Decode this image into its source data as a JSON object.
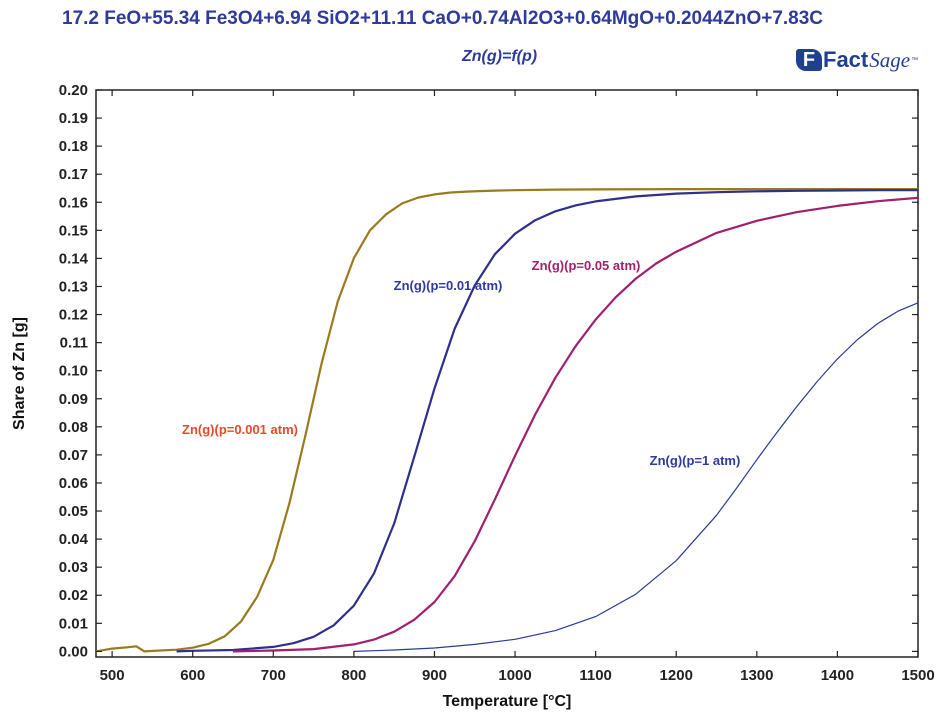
{
  "header": {
    "title": "17.2 FeO+55.34 Fe3O4+6.94 SiO2+11.11 CaO+0.74Al2O3+0.64MgO+0.2044ZnO+7.83C",
    "subtitle": "Zn(g)=f(p)",
    "logo": {
      "part1": "Fact",
      "part2": "Sage",
      "tm": "™",
      "icon": "factsage-logo-icon"
    }
  },
  "chart_data": {
    "type": "line",
    "xlabel": "Temperature [°C]",
    "ylabel": "Share of Zn [g]",
    "xlim": [
      480,
      1500
    ],
    "ylim": [
      -0.002,
      0.2
    ],
    "xticks": [
      500,
      600,
      700,
      800,
      900,
      1000,
      1100,
      1200,
      1300,
      1400,
      1500
    ],
    "yticks": [
      0.0,
      0.01,
      0.02,
      0.03,
      0.04,
      0.05,
      0.06,
      0.07,
      0.08,
      0.09,
      0.1,
      0.11,
      0.12,
      0.13,
      0.14,
      0.15,
      0.16,
      0.17,
      0.18,
      0.19,
      0.2
    ],
    "grid": false,
    "legend": "inline labels",
    "series": [
      {
        "name": "Zn(g)(p=0.001 atm)",
        "color": "#9a7a1e",
        "label_color": "#e8492a",
        "x": [
          480,
          500,
          520,
          530,
          540,
          560,
          580,
          600,
          620,
          640,
          660,
          680,
          700,
          720,
          740,
          760,
          780,
          800,
          820,
          840,
          860,
          880,
          900,
          920,
          940,
          960,
          980,
          1000,
          1050,
          1100,
          1200,
          1300,
          1400,
          1500
        ],
        "y": [
          0.0,
          0.001,
          0.0015,
          0.0018,
          0.0,
          0.0003,
          0.0006,
          0.0013,
          0.0027,
          0.0054,
          0.0107,
          0.0195,
          0.0326,
          0.0528,
          0.0771,
          0.1026,
          0.1247,
          0.1401,
          0.15,
          0.1557,
          0.1596,
          0.1617,
          0.1628,
          0.1635,
          0.1638,
          0.164,
          0.1642,
          0.1643,
          0.1645,
          0.1646,
          0.1647,
          0.1647,
          0.1647,
          0.1647
        ]
      },
      {
        "name": "Zn(g)(p=0.01 atm)",
        "color": "#2e2f8e",
        "label_color": "#2e3a9c",
        "x": [
          580,
          600,
          650,
          700,
          725,
          750,
          775,
          800,
          825,
          850,
          875,
          900,
          925,
          950,
          975,
          1000,
          1025,
          1050,
          1075,
          1100,
          1150,
          1200,
          1250,
          1300,
          1350,
          1400,
          1450,
          1500
        ],
        "y": [
          0.0,
          0.0002,
          0.0005,
          0.0016,
          0.0029,
          0.0052,
          0.0093,
          0.0163,
          0.0278,
          0.0456,
          0.0694,
          0.0937,
          0.1149,
          0.1304,
          0.1415,
          0.1488,
          0.1536,
          0.1568,
          0.1589,
          0.1603,
          0.1621,
          0.1631,
          0.1636,
          0.1639,
          0.1641,
          0.1642,
          0.1643,
          0.1643
        ]
      },
      {
        "name": "Zn(g)(p=0.05 atm)",
        "color": "#a01f6e",
        "label_color": "#a01f6e",
        "x": [
          650,
          700,
          750,
          800,
          825,
          850,
          875,
          900,
          925,
          950,
          975,
          1000,
          1025,
          1050,
          1075,
          1100,
          1125,
          1150,
          1175,
          1200,
          1250,
          1300,
          1350,
          1400,
          1450,
          1500
        ],
        "y": [
          0.0,
          0.0003,
          0.0008,
          0.0025,
          0.0042,
          0.007,
          0.0113,
          0.0176,
          0.0268,
          0.0393,
          0.0542,
          0.0697,
          0.0844,
          0.0975,
          0.1087,
          0.1182,
          0.1262,
          0.1328,
          0.1382,
          0.1424,
          0.1491,
          0.1534,
          0.1565,
          0.1587,
          0.1604,
          0.1616
        ]
      },
      {
        "name": "Zn(g)(p=1 atm)",
        "color": "#2a3a9a",
        "label_color": "#2e3a9c",
        "x": [
          800,
          850,
          900,
          950,
          1000,
          1050,
          1100,
          1150,
          1200,
          1250,
          1275,
          1300,
          1325,
          1350,
          1375,
          1400,
          1425,
          1450,
          1475,
          1500
        ],
        "y": [
          0.0,
          0.0005,
          0.0012,
          0.0025,
          0.0043,
          0.0074,
          0.0124,
          0.0204,
          0.0323,
          0.0485,
          0.0582,
          0.0683,
          0.078,
          0.0874,
          0.0962,
          0.1042,
          0.1111,
          0.1168,
          0.1212,
          0.1242
        ]
      }
    ],
    "annotations": [
      {
        "text": "Zn(g)(p=0.001 atm)",
        "series": 0
      },
      {
        "text": "Zn(g)(p=0.01 atm)",
        "series": 1
      },
      {
        "text": "Zn(g)(p=0.05 atm)",
        "series": 2
      },
      {
        "text": "Zn(g)(p=1 atm)",
        "series": 3
      }
    ]
  }
}
